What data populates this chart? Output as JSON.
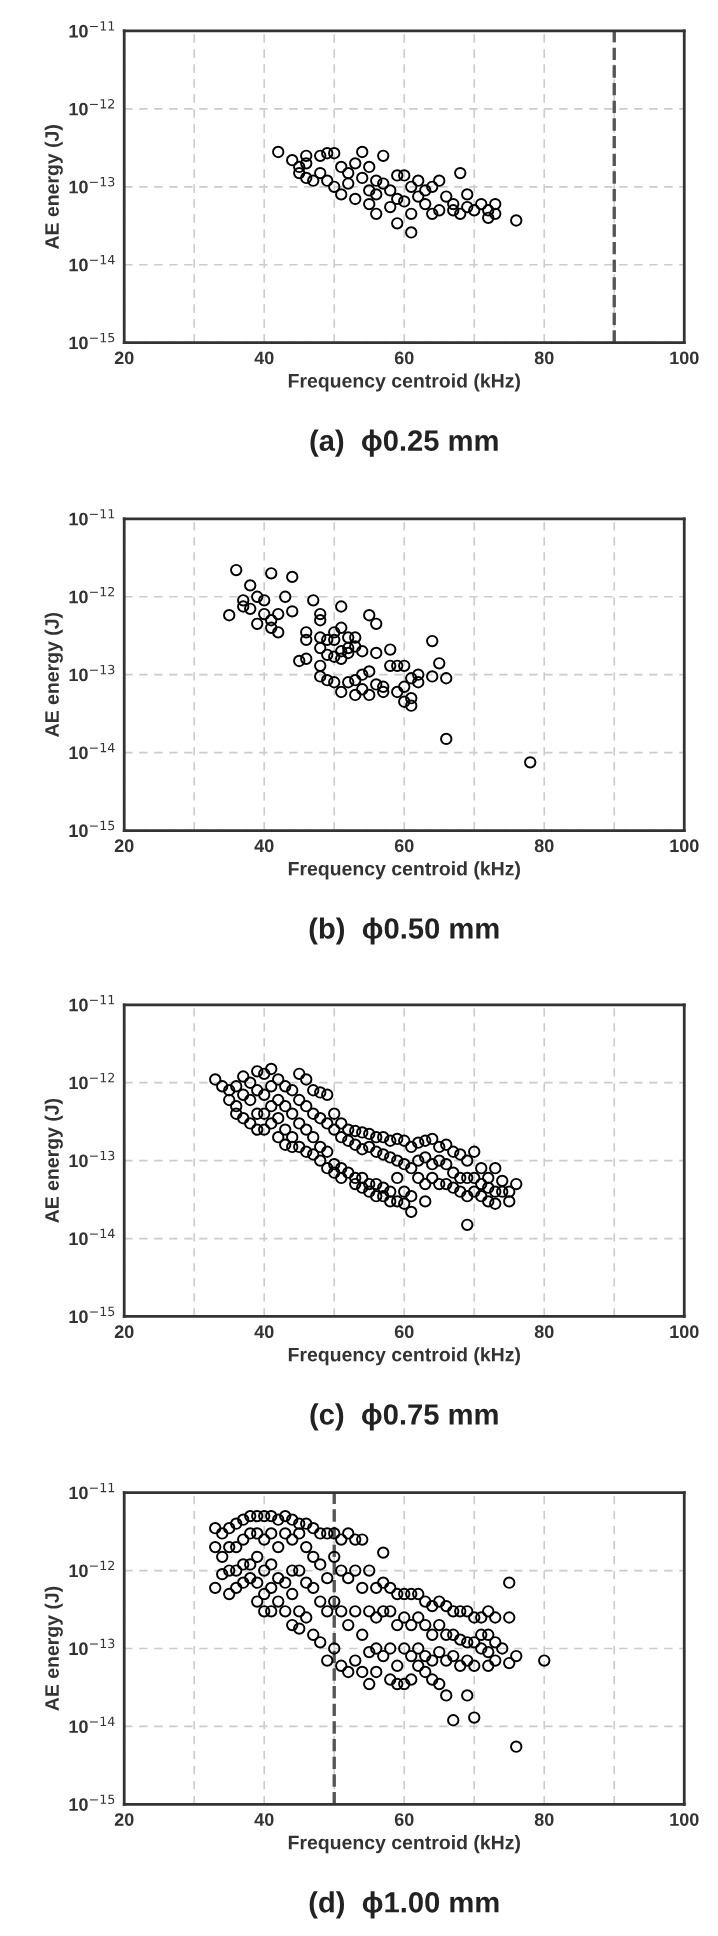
{
  "chart_data": [
    {
      "type": "scatter",
      "title": "(a)  ϕ0.25 mm",
      "xlabel": "Frequency centroid (kHz)",
      "ylabel": "AE energy (J)",
      "log": "y",
      "grid": true,
      "marker": "circle",
      "xlim": [
        20,
        100
      ],
      "xticks": [
        20,
        {
          "value": 30,
          "label": null
        },
        40,
        {
          "value": 50,
          "label": null
        },
        60,
        {
          "value": 70,
          "label": null
        },
        80,
        {
          "value": 90,
          "label": null
        },
        100
      ],
      "ylim": [
        1e-15,
        1e-11
      ],
      "yticks": [
        {
          "value": 1e-15,
          "label": "10$^{−15}$"
        },
        {
          "value": 1e-14,
          "label": "10$^{−14}$"
        },
        {
          "value": 1e-13,
          "label": "10$^{−13}$"
        },
        {
          "value": 1e-12,
          "label": "10$^{−12}$"
        },
        {
          "value": 1e-11,
          "label": "10$^{−11}$"
        }
      ],
      "ref_lines": [
        {
          "axis": "x",
          "value": 90,
          "color": "#555555",
          "line_style": "dashed"
        }
      ],
      "series": [
        {
          "color": "#000000",
          "x": [
            42,
            44,
            45,
            45,
            46,
            46,
            46,
            47,
            48,
            48,
            49,
            49,
            50,
            50,
            51,
            51,
            52,
            52,
            53,
            53,
            54,
            54,
            55,
            55,
            55,
            56,
            56,
            56,
            57,
            57,
            58,
            58,
            59,
            59,
            59,
            60,
            60,
            61,
            61,
            61,
            62,
            62,
            63,
            63,
            64,
            64,
            65,
            65,
            66,
            67,
            67,
            68,
            68,
            69,
            69,
            70,
            71,
            72,
            72,
            73,
            73,
            76
          ],
          "values": [
            2.8e-13,
            2.2e-13,
            1.8e-13,
            1.5e-13,
            2.5e-13,
            2e-13,
            1.3e-13,
            1.2e-13,
            2.5e-13,
            1.5e-13,
            2.7e-13,
            1.2e-13,
            2.7e-13,
            1e-13,
            1.8e-13,
            8e-14,
            1.5e-13,
            1.1e-13,
            2e-13,
            7e-14,
            2.8e-13,
            1.3e-13,
            1.8e-13,
            9e-14,
            6e-14,
            1.2e-13,
            8e-14,
            4.5e-14,
            2.5e-13,
            1.1e-13,
            9e-14,
            5.5e-14,
            1.4e-13,
            7e-14,
            3.4e-14,
            1.4e-13,
            6.5e-14,
            1e-13,
            4.5e-14,
            2.6e-14,
            1.2e-13,
            7.5e-14,
            9e-14,
            6e-14,
            1e-13,
            4.5e-14,
            1.2e-13,
            5e-14,
            7.5e-14,
            6e-14,
            5e-14,
            1.5e-13,
            4.5e-14,
            8e-14,
            5.5e-14,
            5e-14,
            6e-14,
            5e-14,
            4e-14,
            6e-14,
            4.5e-14,
            3.7e-14
          ]
        }
      ]
    },
    {
      "type": "scatter",
      "title": "(b)  ϕ0.50 mm",
      "xlabel": "Frequency centroid (kHz)",
      "ylabel": "AE energy (J)",
      "log": "y",
      "grid": true,
      "marker": "circle",
      "xlim": [
        20,
        100
      ],
      "xticks": [
        20,
        {
          "value": 30,
          "label": null
        },
        40,
        {
          "value": 50,
          "label": null
        },
        60,
        {
          "value": 70,
          "label": null
        },
        80,
        {
          "value": 90,
          "label": null
        },
        100
      ],
      "ylim": [
        1e-15,
        1e-11
      ],
      "yticks": [
        {
          "value": 1e-15,
          "label": "10$^{−15}$"
        },
        {
          "value": 1e-14,
          "label": "10$^{−14}$"
        },
        {
          "value": 1e-13,
          "label": "10$^{−13}$"
        },
        {
          "value": 1e-12,
          "label": "10$^{−12}$"
        },
        {
          "value": 1e-11,
          "label": "10$^{−11}$"
        }
      ],
      "series": [
        {
          "color": "#000000",
          "x": [
            35,
            36,
            37,
            37,
            38,
            38,
            39,
            39,
            40,
            40,
            41,
            41,
            41,
            42,
            42,
            43,
            44,
            44,
            45,
            46,
            46,
            46,
            47,
            48,
            48,
            48,
            48,
            48,
            48,
            49,
            49,
            49,
            50,
            50,
            50,
            50,
            51,
            51,
            51,
            51,
            51,
            52,
            52,
            52,
            52,
            53,
            53,
            53,
            53,
            54,
            54,
            54,
            55,
            55,
            55,
            56,
            56,
            56,
            57,
            57,
            58,
            58,
            59,
            59,
            60,
            60,
            60,
            61,
            61,
            61,
            62,
            62,
            64,
            64,
            65,
            66,
            66,
            78
          ],
          "values": [
            5.8e-13,
            2.2e-12,
            9e-13,
            7.5e-13,
            1.4e-12,
            7e-13,
            1e-12,
            4.5e-13,
            9e-13,
            6e-13,
            2e-12,
            5e-13,
            4e-13,
            6e-13,
            3.5e-13,
            1e-12,
            1.8e-12,
            6.5e-13,
            1.5e-13,
            3.5e-13,
            2.8e-13,
            1.6e-13,
            9e-13,
            6e-13,
            5e-13,
            3e-13,
            2.2e-13,
            1.3e-13,
            9.5e-14,
            2.8e-13,
            1.8e-13,
            8.5e-14,
            3.5e-13,
            2.8e-13,
            1.7e-13,
            8e-14,
            7.5e-13,
            4e-13,
            2e-13,
            1.6e-13,
            6e-14,
            3e-13,
            2.2e-13,
            1.9e-13,
            8e-14,
            3e-13,
            2.3e-13,
            8.5e-14,
            5.5e-14,
            2e-13,
            1e-13,
            6.5e-14,
            5.8e-13,
            1.1e-13,
            5.5e-14,
            4.5e-13,
            1.9e-13,
            7.5e-14,
            7e-14,
            6e-14,
            2.1e-13,
            1.3e-13,
            1.3e-13,
            6e-14,
            1.3e-13,
            7e-14,
            4.5e-14,
            9e-14,
            5e-14,
            4e-14,
            1e-13,
            8e-14,
            2.7e-13,
            9.5e-14,
            1.4e-13,
            9e-14,
            1.5e-14,
            7.5e-15
          ]
        }
      ]
    },
    {
      "type": "scatter",
      "title": "(c)  ϕ0.75 mm",
      "xlabel": "Frequency centroid (kHz)",
      "ylabel": "AE energy (J)",
      "log": "y",
      "grid": true,
      "marker": "circle",
      "xlim": [
        20,
        100
      ],
      "xticks": [
        20,
        {
          "value": 30,
          "label": null
        },
        40,
        {
          "value": 50,
          "label": null
        },
        60,
        {
          "value": 70,
          "label": null
        },
        80,
        {
          "value": 90,
          "label": null
        },
        100
      ],
      "ylim": [
        1e-15,
        1e-11
      ],
      "yticks": [
        {
          "value": 1e-15,
          "label": "10$^{−15}$"
        },
        {
          "value": 1e-14,
          "label": "10$^{−14}$"
        },
        {
          "value": 1e-13,
          "label": "10$^{−13}$"
        },
        {
          "value": 1e-12,
          "label": "10$^{−12}$"
        },
        {
          "value": 1e-11,
          "label": "10$^{−11}$"
        }
      ],
      "series": [
        {
          "color": "#000000",
          "x": [
            33,
            34,
            35,
            35,
            36,
            36,
            36,
            37,
            37,
            37,
            38,
            38,
            38,
            39,
            39,
            39,
            39,
            40,
            40,
            40,
            40,
            41,
            41,
            41,
            41,
            42,
            42,
            42,
            42,
            43,
            43,
            43,
            43,
            44,
            44,
            44,
            44,
            45,
            45,
            45,
            45,
            46,
            46,
            46,
            46,
            47,
            47,
            47,
            47,
            48,
            48,
            48,
            48,
            49,
            49,
            49,
            49,
            50,
            50,
            50,
            50,
            51,
            51,
            51,
            51,
            52,
            52,
            52,
            53,
            53,
            53,
            53,
            54,
            54,
            54,
            54,
            55,
            55,
            55,
            55,
            56,
            56,
            56,
            56,
            57,
            57,
            57,
            57,
            58,
            58,
            58,
            58,
            59,
            59,
            59,
            59,
            60,
            60,
            60,
            60,
            61,
            61,
            61,
            61,
            62,
            62,
            62,
            63,
            63,
            63,
            63,
            64,
            64,
            64,
            65,
            65,
            65,
            66,
            66,
            66,
            67,
            67,
            67,
            68,
            68,
            68,
            69,
            69,
            69,
            69,
            70,
            70,
            70,
            71,
            71,
            71,
            72,
            72,
            72,
            73,
            73,
            73,
            74,
            74,
            75,
            75,
            76
          ],
          "values": [
            1.1e-12,
            9e-13,
            8e-13,
            6e-13,
            9e-13,
            5e-13,
            4e-13,
            1.2e-12,
            7e-13,
            3.5e-13,
            1e-12,
            6e-13,
            3e-13,
            1.4e-12,
            8e-13,
            4e-13,
            2.5e-13,
            1.3e-12,
            7e-13,
            4e-13,
            2.5e-13,
            1.5e-12,
            9e-13,
            5e-13,
            3e-13,
            1.1e-12,
            6e-13,
            3.5e-13,
            2e-13,
            9e-13,
            5e-13,
            2.5e-13,
            1.6e-13,
            8e-13,
            4e-13,
            2e-13,
            1.5e-13,
            1.3e-12,
            6e-13,
            3e-13,
            1.5e-13,
            1.1e-12,
            5e-13,
            2.5e-13,
            1.3e-13,
            8e-13,
            4e-13,
            2e-13,
            1.2e-13,
            7.5e-13,
            3.5e-13,
            1.5e-13,
            1e-13,
            7e-13,
            3e-13,
            1.3e-13,
            8e-14,
            4e-13,
            2.5e-13,
            9e-14,
            7e-14,
            3e-13,
            2e-13,
            8e-14,
            6e-14,
            2.5e-13,
            1.8e-13,
            7e-14,
            2.4e-13,
            1.6e-13,
            6e-14,
            5e-14,
            2.3e-13,
            1.4e-13,
            6e-14,
            4.5e-14,
            2.2e-13,
            1.5e-13,
            5e-14,
            4e-14,
            2e-13,
            1.3e-13,
            5e-14,
            3.5e-14,
            2e-13,
            1.2e-13,
            4.5e-14,
            3.5e-14,
            1.8e-13,
            1.1e-13,
            4e-14,
            3e-14,
            1.9e-13,
            1e-13,
            6e-14,
            3e-14,
            1.8e-13,
            9e-14,
            4e-14,
            2.8e-14,
            1.5e-13,
            8e-14,
            3.5e-14,
            2.2e-14,
            1.7e-13,
            1e-13,
            6e-14,
            1.8e-13,
            1.1e-13,
            5e-14,
            3e-14,
            1.9e-13,
            9e-14,
            6e-14,
            1.5e-13,
            1e-13,
            5e-14,
            1.6e-13,
            9e-14,
            5e-14,
            1.3e-13,
            7e-14,
            4.5e-14,
            1.2e-13,
            6e-14,
            4e-14,
            1e-13,
            6e-14,
            3.5e-14,
            1.5e-14,
            1.3e-13,
            6e-14,
            4e-14,
            8e-14,
            5e-14,
            3.5e-14,
            6e-14,
            4.5e-14,
            3e-14,
            8e-14,
            4e-14,
            2.8e-14,
            5.5e-14,
            4e-14,
            4e-14,
            3e-14,
            5e-14
          ]
        }
      ]
    },
    {
      "type": "scatter",
      "title": "(d)  ϕ1.00 mm",
      "xlabel": "Frequency centroid (kHz)",
      "ylabel": "AE energy (J)",
      "log": "y",
      "grid": true,
      "marker": "circle",
      "xlim": [
        20,
        100
      ],
      "xticks": [
        20,
        {
          "value": 30,
          "label": null
        },
        40,
        {
          "value": 50,
          "label": null
        },
        60,
        {
          "value": 70,
          "label": null
        },
        80,
        {
          "value": 90,
          "label": null
        },
        100
      ],
      "ylim": [
        1e-15,
        1e-11
      ],
      "yticks": [
        {
          "value": 1e-15,
          "label": "10$^{−15}$"
        },
        {
          "value": 1e-14,
          "label": "10$^{−14}$"
        },
        {
          "value": 1e-13,
          "label": "10$^{−13}$"
        },
        {
          "value": 1e-12,
          "label": "10$^{−12}$"
        },
        {
          "value": 1e-11,
          "label": "10$^{−11}$"
        }
      ],
      "ref_lines": [
        {
          "axis": "x",
          "value": 50,
          "color": "#555555",
          "line_style": "dashed"
        }
      ],
      "series": [
        {
          "color": "#000000",
          "x": [
            33,
            33,
            33,
            34,
            34,
            34,
            35,
            35,
            35,
            35,
            36,
            36,
            36,
            36,
            37,
            37,
            37,
            37,
            38,
            38,
            38,
            38,
            39,
            39,
            39,
            39,
            39,
            40,
            40,
            40,
            40,
            40,
            41,
            41,
            41,
            41,
            41,
            42,
            42,
            42,
            42,
            43,
            43,
            43,
            43,
            44,
            44,
            44,
            44,
            44,
            45,
            45,
            45,
            45,
            45,
            46,
            46,
            46,
            46,
            47,
            47,
            47,
            47,
            48,
            48,
            48,
            48,
            49,
            49,
            49,
            49,
            50,
            50,
            50,
            50,
            51,
            51,
            51,
            51,
            52,
            52,
            52,
            52,
            53,
            53,
            53,
            53,
            54,
            54,
            54,
            54,
            55,
            55,
            55,
            55,
            56,
            56,
            56,
            56,
            57,
            57,
            57,
            57,
            58,
            58,
            58,
            58,
            59,
            59,
            59,
            59,
            60,
            60,
            60,
            60,
            61,
            61,
            61,
            61,
            62,
            62,
            62,
            62,
            63,
            63,
            63,
            63,
            64,
            64,
            64,
            64,
            65,
            65,
            65,
            65,
            66,
            66,
            66,
            66,
            67,
            67,
            67,
            67,
            68,
            68,
            68,
            69,
            69,
            69,
            69,
            70,
            70,
            70,
            70,
            71,
            71,
            71,
            72,
            72,
            72,
            72,
            73,
            73,
            73,
            74,
            75,
            75,
            75,
            76,
            76,
            80
          ],
          "values": [
            3.5e-12,
            2e-12,
            6e-13,
            3e-12,
            1.5e-12,
            9e-13,
            3.5e-12,
            2e-12,
            1e-12,
            5e-13,
            4e-12,
            2e-12,
            1e-12,
            6e-13,
            4.5e-12,
            2.5e-12,
            1.2e-12,
            7e-13,
            5e-12,
            3e-12,
            1.2e-12,
            8e-13,
            5e-12,
            3e-12,
            1.5e-12,
            7e-13,
            4e-13,
            5e-12,
            2.5e-12,
            1e-12,
            5e-13,
            3e-13,
            5e-12,
            3e-12,
            1.2e-12,
            6e-13,
            3e-13,
            4.5e-12,
            2e-12,
            8e-13,
            4e-13,
            5e-12,
            3e-12,
            7e-13,
            3e-13,
            4.5e-12,
            2.5e-12,
            1e-12,
            5e-13,
            2e-13,
            4e-12,
            3e-12,
            1e-12,
            3e-13,
            1.8e-13,
            4e-12,
            2e-12,
            7e-13,
            2.5e-13,
            3.5e-12,
            1.5e-12,
            6e-13,
            1.5e-13,
            3e-12,
            1.2e-12,
            4e-13,
            1.2e-13,
            3e-12,
            8e-13,
            3e-13,
            7e-14,
            3e-12,
            1.5e-12,
            4e-13,
            1e-13,
            2.5e-12,
            1e-12,
            3e-13,
            6e-14,
            3e-12,
            8e-13,
            2e-13,
            5e-14,
            2.5e-12,
            1e-12,
            3e-13,
            7e-14,
            2.5e-12,
            6e-13,
            1.5e-13,
            5e-14,
            1e-12,
            3e-13,
            9e-14,
            3.5e-14,
            6e-13,
            2.5e-13,
            1e-13,
            5e-14,
            1.7e-12,
            7e-13,
            3e-13,
            8e-14,
            6e-13,
            3e-13,
            1e-13,
            4e-14,
            5e-13,
            2e-13,
            6e-14,
            3.5e-14,
            5e-13,
            2.5e-13,
            1e-13,
            3.5e-14,
            5e-13,
            2e-13,
            8e-14,
            4e-14,
            5e-13,
            2.5e-13,
            1e-13,
            6e-14,
            4e-13,
            2e-13,
            8e-14,
            5e-14,
            3.5e-13,
            1.5e-13,
            7e-14,
            4e-14,
            4e-13,
            2e-13,
            9e-14,
            3.5e-14,
            3.5e-13,
            1.5e-13,
            7e-14,
            2.5e-14,
            3e-13,
            1.5e-13,
            8e-14,
            1.2e-14,
            3e-13,
            1.3e-13,
            6e-14,
            3e-13,
            1.2e-13,
            7e-14,
            2.5e-14,
            2.5e-13,
            1.2e-13,
            6e-14,
            1.3e-14,
            2.5e-13,
            1.5e-13,
            1e-13,
            3e-13,
            1.5e-13,
            9e-14,
            6e-14,
            2.5e-13,
            1.2e-13,
            7e-14,
            1e-13,
            7e-13,
            2.5e-13,
            6.5e-14,
            8e-14,
            5.5e-15,
            7e-14
          ]
        }
      ]
    }
  ]
}
